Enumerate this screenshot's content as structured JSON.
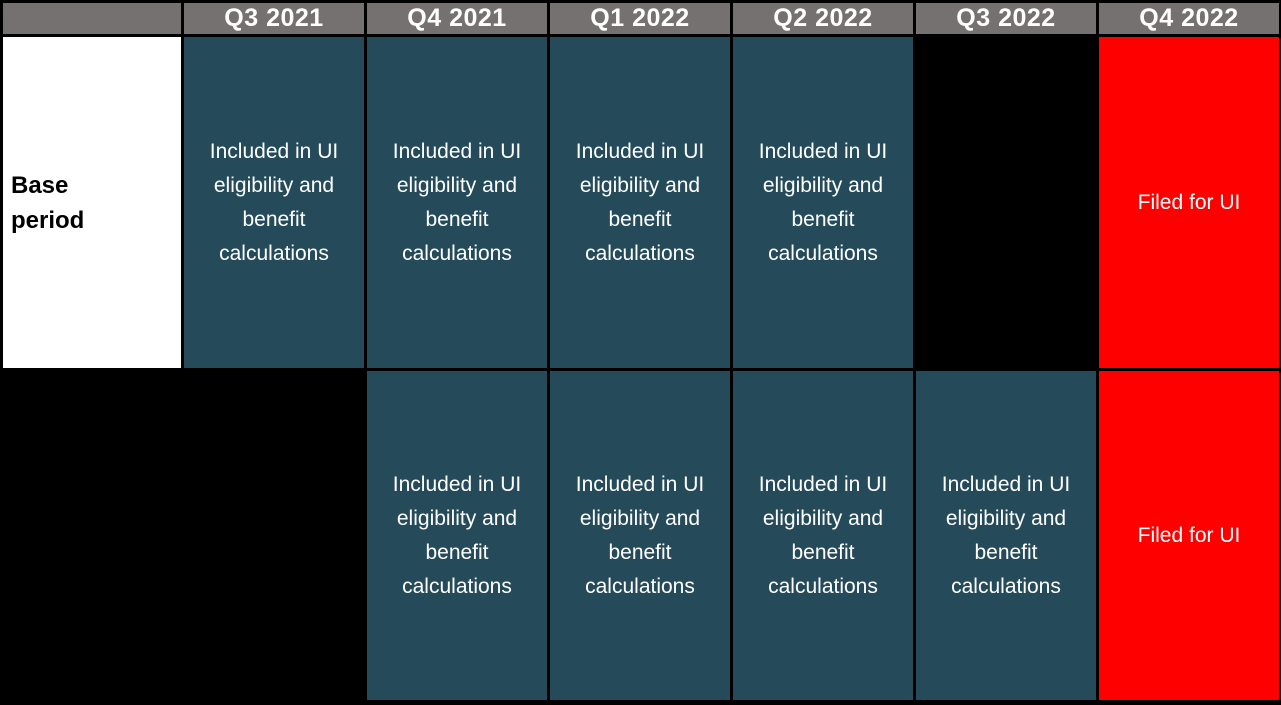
{
  "colors": {
    "header_bg": "#757171",
    "header_text": "#ffffff",
    "included_bg": "#254b5b",
    "filed_bg": "#ff0000",
    "blank_bg": "#000000",
    "label_bg": "#ffffff",
    "label_text": "#000000",
    "cell_text": "#ffffff",
    "border": "#000000"
  },
  "header": {
    "columns": [
      "",
      "Q3 2021",
      "Q4 2021",
      "Q1 2022",
      "Q2 2022",
      "Q3 2022",
      "Q4 2022"
    ]
  },
  "labels": {
    "included": "Included in UI eligibility and benefit calculations",
    "filed": "Filed for UI",
    "base_period": "Base\nperiod"
  },
  "rows": [
    {
      "cells": [
        {
          "type": "label",
          "text": "Base\nperiod"
        },
        {
          "type": "included",
          "text": "Included in UI eligibility and benefit calculations"
        },
        {
          "type": "included",
          "text": "Included in UI eligibility and benefit calculations"
        },
        {
          "type": "included",
          "text": "Included in UI eligibility and benefit calculations"
        },
        {
          "type": "included",
          "text": "Included in UI eligibility and benefit calculations"
        },
        {
          "type": "blank",
          "text": ""
        },
        {
          "type": "filed",
          "text": "Filed for UI"
        }
      ]
    },
    {
      "cells": [
        {
          "type": "blank",
          "text": ""
        },
        {
          "type": "blank",
          "text": ""
        },
        {
          "type": "included",
          "text": "Included in UI eligibility and benefit calculations"
        },
        {
          "type": "included",
          "text": "Included in UI eligibility and benefit calculations"
        },
        {
          "type": "included",
          "text": "Included in UI eligibility and benefit calculations"
        },
        {
          "type": "included",
          "text": "Included in UI eligibility and benefit calculations"
        },
        {
          "type": "filed",
          "text": "Filed for UI"
        }
      ]
    }
  ]
}
